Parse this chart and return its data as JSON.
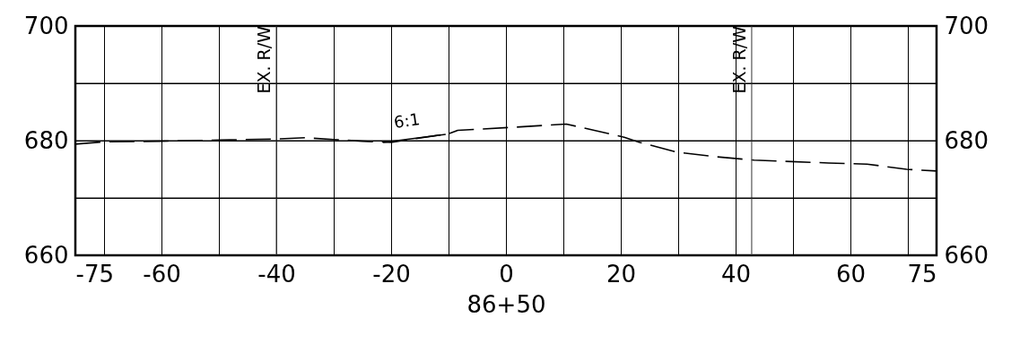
{
  "chart_data": {
    "type": "line",
    "xlabel": "86+50",
    "xlim": [
      -75,
      75
    ],
    "xticks": [
      -75,
      {
        "value": -70,
        "label": null
      },
      -60,
      {
        "value": -50,
        "label": null
      },
      -40,
      {
        "value": -30,
        "label": null
      },
      -20,
      {
        "value": -10,
        "label": null
      },
      0,
      {
        "value": 10,
        "label": null
      },
      20,
      {
        "value": 30,
        "label": null
      },
      40,
      {
        "value": 50,
        "label": null
      },
      60,
      {
        "value": 70,
        "label": null
      },
      75
    ],
    "ylim": [
      660,
      700
    ],
    "yticks": [
      660,
      {
        "value": 670,
        "label": null
      },
      680,
      {
        "value": 690,
        "label": null
      },
      700
    ],
    "y2lim": [
      660,
      700
    ],
    "y2ticks": [
      660,
      {
        "value": 670,
        "label": null
      },
      680,
      {
        "value": 690,
        "label": null
      },
      700
    ],
    "grid": true,
    "series": [
      {
        "color": "#000000",
        "line_style": "dashed",
        "x": [
          -75,
          -70,
          -60,
          -50,
          -40,
          -35,
          -30,
          -25,
          -20,
          -10,
          -8.4,
          2.5,
          10.5,
          20.6,
          23.3,
          29.7,
          36.4,
          43.2,
          56.2,
          62.9,
          69.8,
          75
        ],
        "values": [
          679.4,
          679.8,
          679.9,
          680.1,
          680.3,
          680.5,
          680.2,
          679.9,
          679.7,
          681.2,
          681.8,
          682.4,
          682.9,
          680.6,
          679.7,
          678.0,
          677.2,
          676.6,
          676.1,
          675.9,
          675.0,
          674.7
        ]
      },
      {
        "color": "#000000",
        "line_style": "solid",
        "x": [
          -21.4,
          -10.5
        ],
        "values": [
          679.7,
          681.1
        ]
      }
    ],
    "ref_lines": [
      {
        "axis": "x",
        "value": -40,
        "label": "EX. R/W"
      },
      {
        "axis": "x",
        "value": 42.8,
        "label": "EX. R/W"
      }
    ],
    "annotations": [
      "6:1"
    ]
  }
}
